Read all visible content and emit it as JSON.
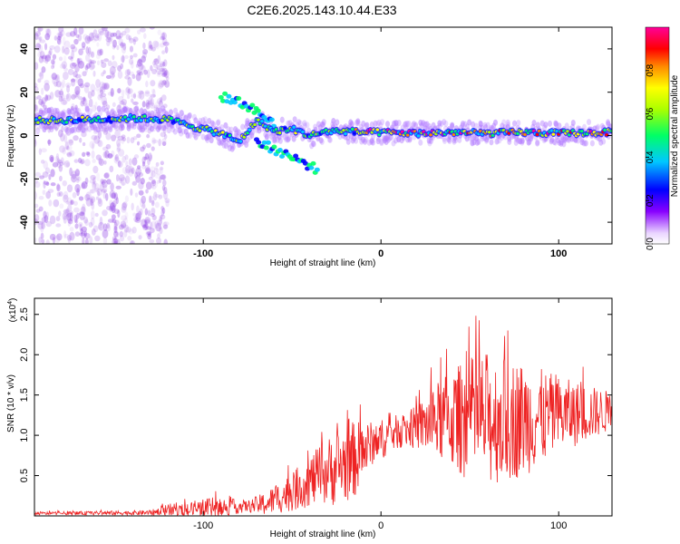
{
  "title": "C2E6.2025.143.10.44.E33",
  "chart_data": [
    {
      "type": "heatmap",
      "xlabel": "Height of straight line (km)",
      "ylabel": "Frequency (Hz)",
      "xlim": [
        -195,
        130
      ],
      "ylim": [
        -50,
        50
      ],
      "x_ticks": [
        "-100",
        "0",
        "100"
      ],
      "y_ticks": [
        "-40",
        "-20",
        "0",
        "20",
        "40"
      ],
      "colorbar": {
        "label": "Normalized spectral amplitude",
        "ticks": [
          "0.0",
          "0.2",
          "0.4",
          "0.6",
          "0.8"
        ],
        "range": [
          0,
          1
        ]
      },
      "ridge": [
        {
          "x": -195,
          "f": 7
        },
        {
          "x": -180,
          "f": 7
        },
        {
          "x": -160,
          "f": 7.5
        },
        {
          "x": -140,
          "f": 8
        },
        {
          "x": -120,
          "f": 7.5
        },
        {
          "x": -105,
          "f": 4
        },
        {
          "x": -90,
          "f": 1
        },
        {
          "x": -80,
          "f": -3
        },
        {
          "x": -70,
          "f": 7
        },
        {
          "x": -60,
          "f": 2
        },
        {
          "x": -50,
          "f": 3
        },
        {
          "x": -40,
          "f": 0
        },
        {
          "x": -30,
          "f": 2
        },
        {
          "x": -20,
          "f": 2
        },
        {
          "x": -10,
          "f": 1.5
        },
        {
          "x": 0,
          "f": 1.5
        },
        {
          "x": 20,
          "f": 1
        },
        {
          "x": 40,
          "f": 1.5
        },
        {
          "x": 60,
          "f": 1
        },
        {
          "x": 80,
          "f": 1.5
        },
        {
          "x": 100,
          "f": 1
        },
        {
          "x": 130,
          "f": 1.5
        }
      ],
      "branches": [
        {
          "x": [
            -90,
            -78,
            -68,
            -60
          ],
          "f": [
            18,
            15,
            10,
            6
          ]
        },
        {
          "x": [
            -70,
            -55,
            -45,
            -35
          ],
          "f": [
            -3,
            -8,
            -12,
            -16
          ]
        }
      ]
    },
    {
      "type": "line",
      "xlabel": "Height of straight line (km)",
      "ylabel": "SNR (10 * v/v)",
      "multiplier_label": "(x10",
      "multiplier_exp": "4",
      "multiplier_close": ")",
      "xlim": [
        -195,
        130
      ],
      "ylim": [
        0,
        27000
      ],
      "x_ticks": [
        "-100",
        "0",
        "100"
      ],
      "y_ticks": [
        "0.5",
        "1.0",
        "1.5",
        "2.0",
        "2.5"
      ],
      "series": [
        {
          "color": "#ee2222",
          "envelope": [
            {
              "x": -195,
              "base": 300,
              "amp": 300
            },
            {
              "x": -130,
              "base": 400,
              "amp": 500
            },
            {
              "x": -115,
              "base": 700,
              "amp": 1800
            },
            {
              "x": -95,
              "base": 1000,
              "amp": 2200
            },
            {
              "x": -75,
              "base": 1200,
              "amp": 1200
            },
            {
              "x": -65,
              "base": 1500,
              "amp": 2500
            },
            {
              "x": -50,
              "base": 3000,
              "amp": 4000
            },
            {
              "x": -35,
              "base": 5000,
              "amp": 6000
            },
            {
              "x": -25,
              "base": 6000,
              "amp": 8000
            },
            {
              "x": -15,
              "base": 7000,
              "amp": 8000
            },
            {
              "x": -5,
              "base": 9000,
              "amp": 4500
            },
            {
              "x": 10,
              "base": 10500,
              "amp": 3500
            },
            {
              "x": 20,
              "base": 11000,
              "amp": 4500
            },
            {
              "x": 35,
              "base": 12000,
              "amp": 9000
            },
            {
              "x": 50,
              "base": 12000,
              "amp": 13000
            },
            {
              "x": 60,
              "base": 12000,
              "amp": 14000
            },
            {
              "x": 80,
              "base": 12000,
              "amp": 12000
            },
            {
              "x": 100,
              "base": 12500,
              "amp": 8000
            },
            {
              "x": 130,
              "base": 13000,
              "amp": 4000
            }
          ]
        }
      ]
    }
  ]
}
